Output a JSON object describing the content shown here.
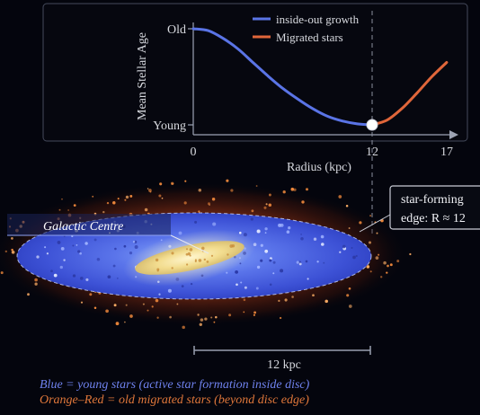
{
  "chart_data": {
    "type": "line",
    "xlabel": "Radius (kpc)",
    "ylabel": "Mean Stellar Age",
    "x_ticks": [
      "0",
      "12",
      "17"
    ],
    "y_ticks": [
      "Old",
      "Young"
    ],
    "xlim": [
      0,
      17
    ],
    "series": [
      {
        "name": "inside-out growth",
        "color": "#5a74e6",
        "x": [
          0,
          1,
          2,
          3,
          4,
          5,
          6,
          7,
          8,
          9,
          10,
          11,
          12
        ],
        "y": [
          1.0,
          0.98,
          0.9,
          0.79,
          0.65,
          0.51,
          0.38,
          0.27,
          0.17,
          0.09,
          0.04,
          0.01,
          0.0
        ]
      },
      {
        "name": "Migrated stars",
        "color": "#e0663a",
        "x": [
          12,
          13,
          14,
          15,
          16,
          17
        ],
        "y": [
          0.0,
          0.05,
          0.17,
          0.33,
          0.5,
          0.65
        ]
      }
    ],
    "marker": {
      "x": 12,
      "y": 0
    },
    "grid": false,
    "legend": "top-right"
  },
  "labels": {
    "galactic_centre": "Galactic Centre",
    "edge_line1": "star-forming",
    "edge_line2": "edge: R ≈ 12",
    "scale": "12 kpc",
    "caption_blue": "Blue = young stars (active star formation inside disc)",
    "caption_orange": "Orange–Red = old migrated stars (beyond disc edge)"
  },
  "colors": {
    "young": "#5a74e6",
    "migrated": "#e0663a",
    "caption_blue": "#6f82ee",
    "caption_orange": "#e0773a"
  }
}
